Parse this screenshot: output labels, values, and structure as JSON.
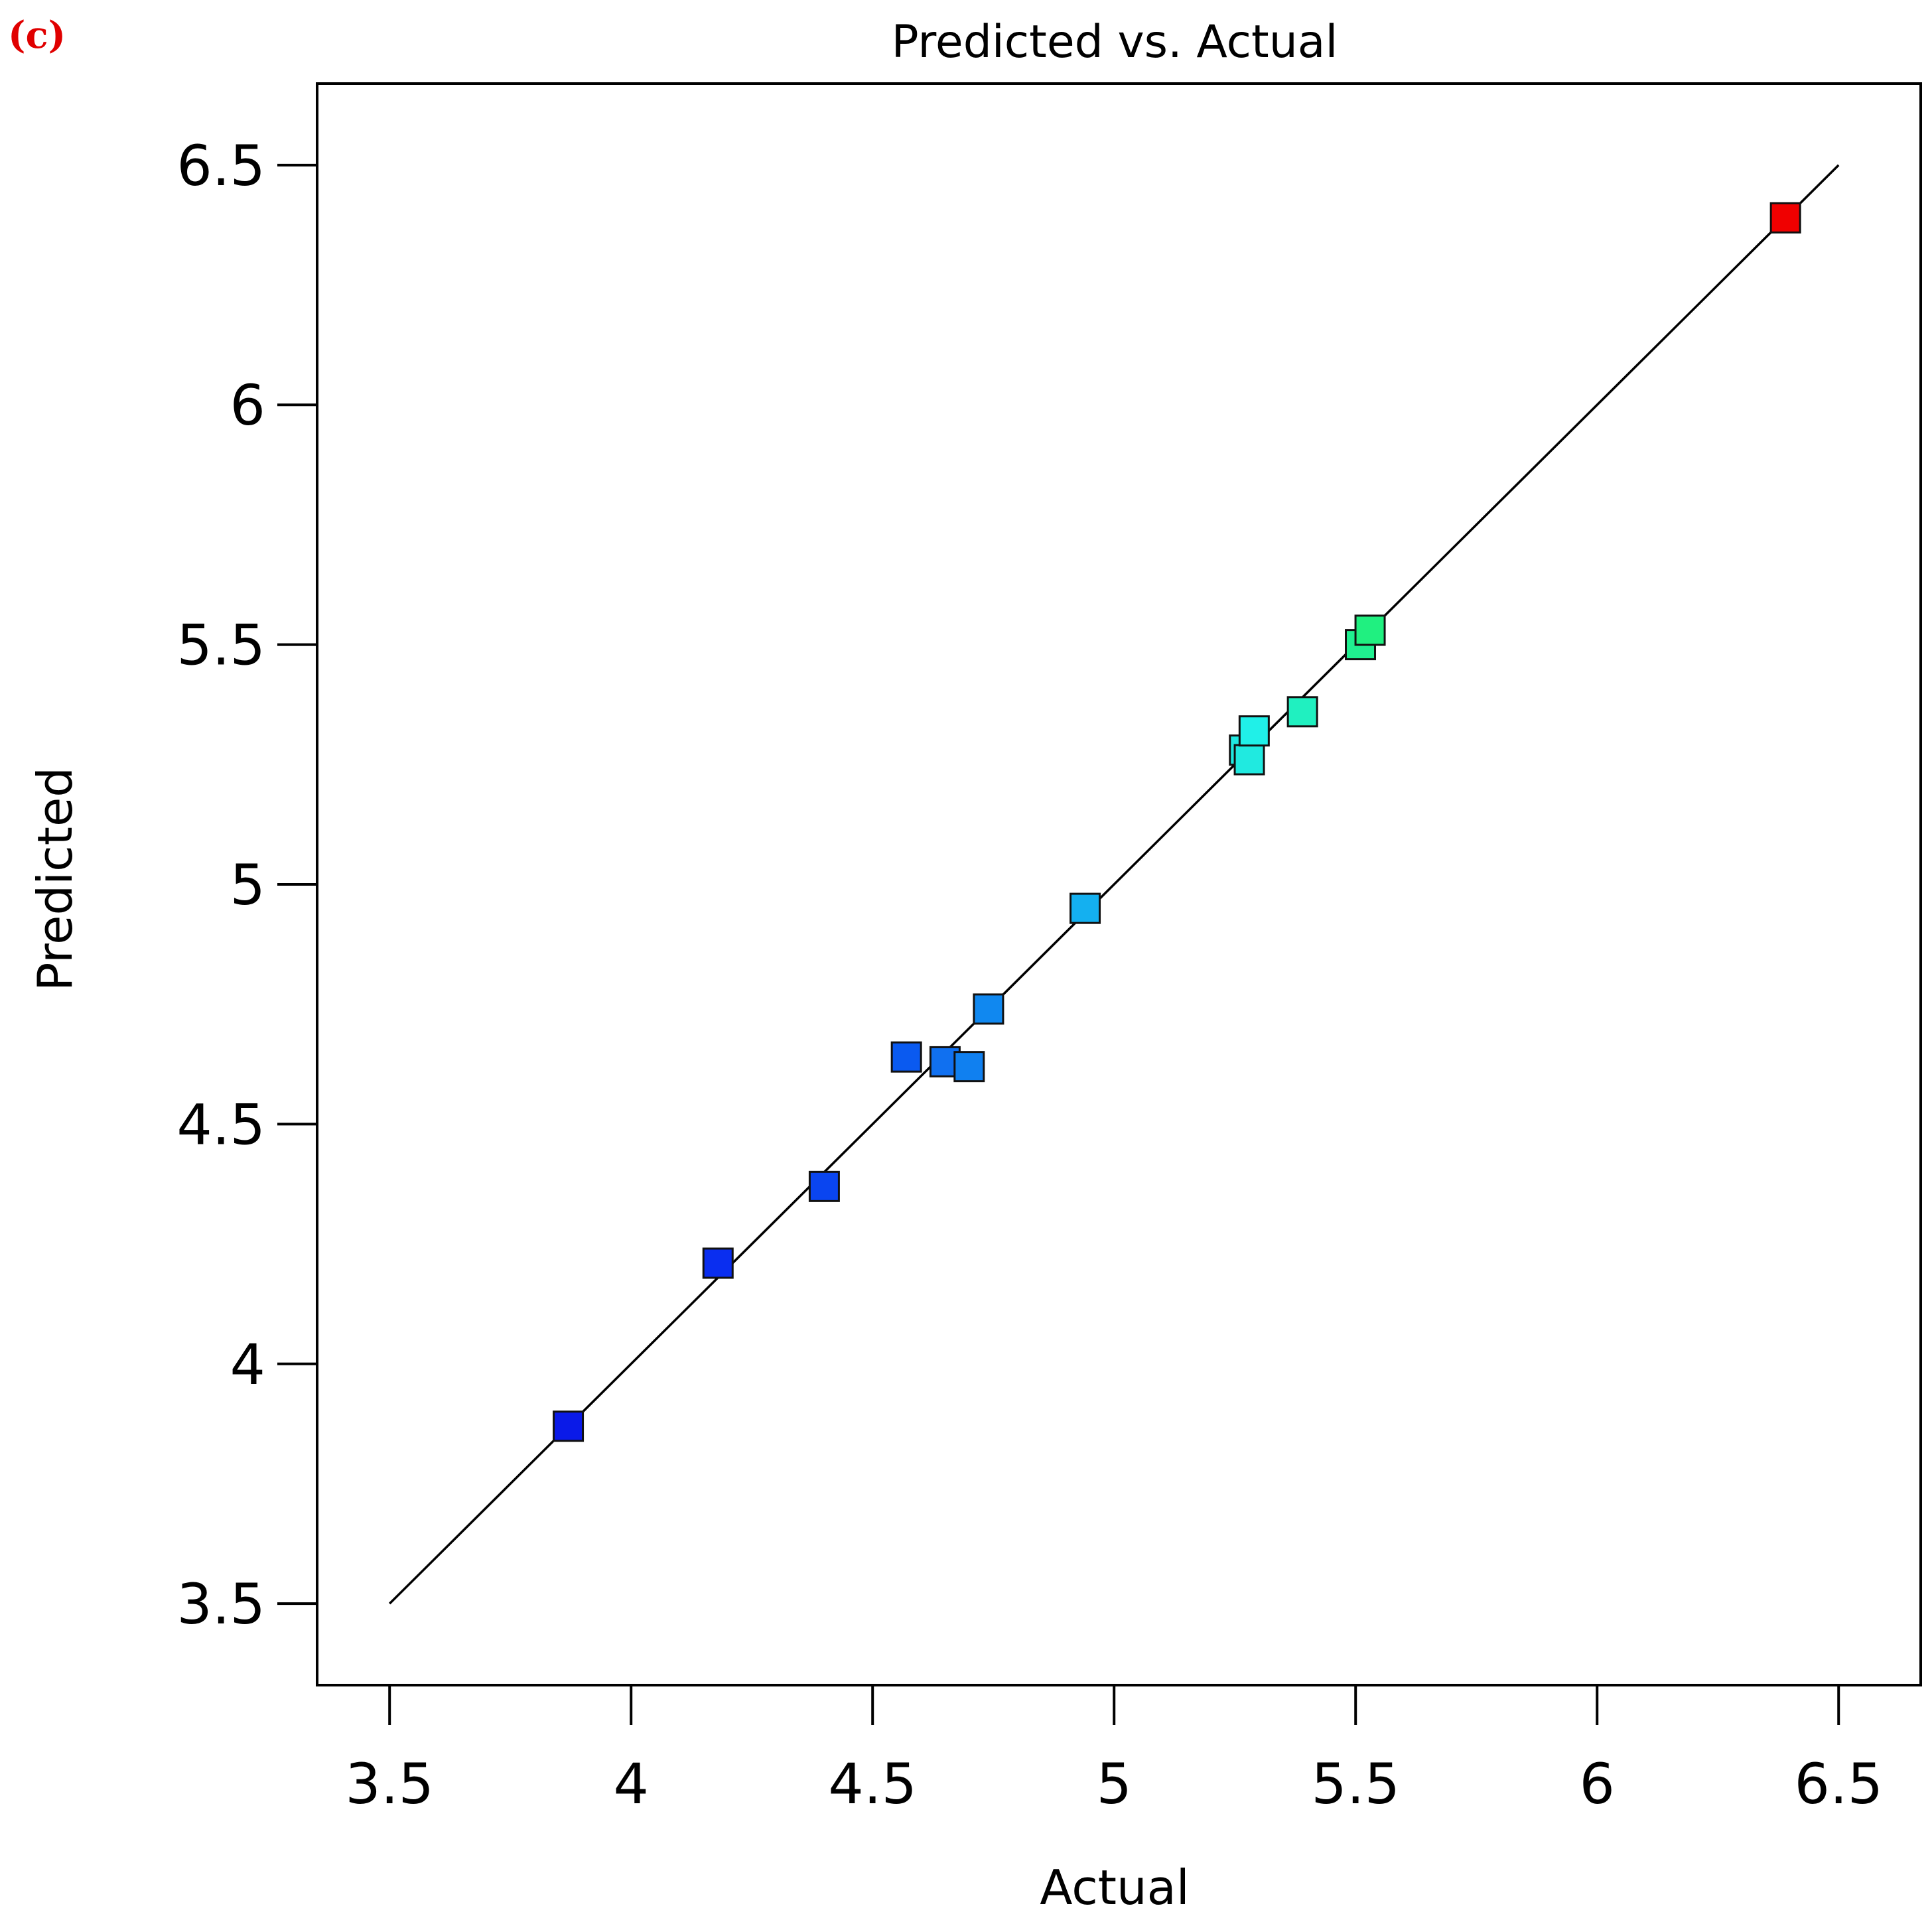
{
  "panel_label": "(c)",
  "chart_data": {
    "type": "scatter",
    "title": "Predicted vs. Actual",
    "xlabel": "Actual",
    "ylabel": "Predicted",
    "xlim": [
      3.35,
      6.67
    ],
    "ylim": [
      3.33,
      6.67
    ],
    "xticks": [
      3.5,
      4,
      4.5,
      5,
      5.5,
      6,
      6.5
    ],
    "yticks": [
      3.5,
      4,
      4.5,
      5,
      5.5,
      6,
      6.5
    ],
    "xtick_labels": [
      "3.5",
      "4",
      "4.5",
      "5",
      "5.5",
      "6",
      "6.5"
    ],
    "ytick_labels": [
      "3.5",
      "4",
      "4.5",
      "5",
      "5.5",
      "6",
      "6.5"
    ],
    "grid": false,
    "reference_line": {
      "from": [
        3.5,
        3.5
      ],
      "to": [
        6.5,
        6.5
      ],
      "color": "#000000"
    },
    "marker": "square",
    "color_scale": {
      "low": "#0000ff",
      "mid_low": "#00a0ff",
      "mid": "#00ffd0",
      "mid_high": "#00ff60",
      "high": "#ff0000"
    },
    "points": [
      {
        "x": 3.87,
        "y": 3.87,
        "color": "#0a1ae8"
      },
      {
        "x": 4.18,
        "y": 4.21,
        "color": "#0a2ef0"
      },
      {
        "x": 4.4,
        "y": 4.37,
        "color": "#0a45f0"
      },
      {
        "x": 4.57,
        "y": 4.64,
        "color": "#0a5af0"
      },
      {
        "x": 4.65,
        "y": 4.63,
        "color": "#1070f0"
      },
      {
        "x": 4.7,
        "y": 4.62,
        "color": "#1080f0"
      },
      {
        "x": 4.74,
        "y": 4.74,
        "color": "#1088f0"
      },
      {
        "x": 4.94,
        "y": 4.95,
        "color": "#14b0f0"
      },
      {
        "x": 5.27,
        "y": 5.28,
        "color": "#20e8e0"
      },
      {
        "x": 5.28,
        "y": 5.26,
        "color": "#20eae0"
      },
      {
        "x": 5.29,
        "y": 5.32,
        "color": "#20f0e8"
      },
      {
        "x": 5.39,
        "y": 5.36,
        "color": "#20f0c0"
      },
      {
        "x": 5.51,
        "y": 5.5,
        "color": "#20f090"
      },
      {
        "x": 5.53,
        "y": 5.53,
        "color": "#20f080"
      },
      {
        "x": 6.39,
        "y": 6.39,
        "color": "#f00000"
      }
    ]
  }
}
